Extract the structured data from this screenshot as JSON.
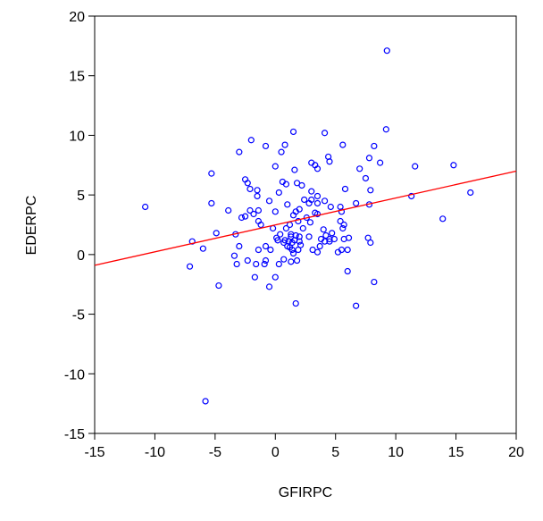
{
  "chart_data": {
    "type": "scatter",
    "xlabel": "GFIRPC",
    "ylabel": "EDERPC",
    "xlim": [
      -15,
      20
    ],
    "ylim": [
      -15,
      20
    ],
    "xticks": [
      -15,
      -10,
      -5,
      0,
      5,
      10,
      15,
      20
    ],
    "yticks": [
      -15,
      -10,
      -5,
      0,
      5,
      10,
      15,
      20
    ],
    "series": [
      {
        "type": "scatter",
        "color": "#0000ff",
        "x": [
          9.27,
          9.2,
          1.5,
          -2.0,
          -0.8,
          0.8,
          4.1,
          5.6,
          8.2,
          0.5,
          -3.0,
          4.4,
          4.5,
          3.3,
          3.0,
          0,
          1.6,
          3.5,
          7.0,
          7.8,
          8.7,
          11.6,
          14.8,
          -5.3,
          7.5,
          -2.5,
          0.6,
          1.8,
          2.2,
          0.9,
          -2.3,
          5.8,
          16.2,
          7.9,
          -2.1,
          -1.5,
          3.0,
          0.3,
          11.3,
          3.5,
          4.1,
          -1.5,
          2.4,
          3.0,
          -0.5,
          2.8,
          -5.3,
          3.5,
          1.0,
          6.7,
          7.8,
          -10.8,
          4.6,
          5.4,
          -3.9,
          -2.1,
          -1.4,
          1.7,
          2.0,
          5.5,
          0,
          3.3,
          -1.8,
          1.5,
          3.5,
          -2.5,
          2.6,
          -2.8,
          -1.4,
          1.9,
          5.4,
          13.9,
          1.2,
          2.9,
          -1.2,
          5.7,
          5.6,
          4.0,
          0.9,
          2.3,
          -0.2,
          -4.9,
          -3.3,
          4.7,
          1.3,
          1.7,
          0.4,
          2.8,
          4.2,
          1.3,
          2.0,
          0.1,
          4.5,
          3.8,
          4.9,
          5.7,
          6.1,
          7.7,
          1.6,
          0.8,
          1.1,
          0.2,
          4.5,
          1.4,
          0.7,
          4.1,
          2.0,
          -6.9,
          7.9,
          2.1,
          1.0,
          3.7,
          -3.0,
          -0.8,
          1.2,
          -6.0,
          3.1,
          6.0,
          -0.4,
          1.9,
          5.5,
          -1.4,
          3.5,
          1.4,
          5.2,
          1.5,
          -3.4,
          0.7,
          1.8,
          1.3,
          -0.8,
          -2.3,
          0.3,
          -0.9,
          -1.6,
          -3.2,
          -7.1,
          6.0,
          -1.7,
          0,
          8.2,
          -4.7,
          -0.5,
          1.7,
          6.7,
          -5.8
        ],
        "y": [
          17.1,
          10.5,
          10.3,
          9.6,
          9.1,
          9.2,
          10.2,
          9.2,
          9.1,
          8.6,
          8.6,
          8.2,
          7.8,
          7.5,
          7.7,
          7.4,
          7.1,
          7.2,
          7.2,
          8.1,
          7.7,
          7.4,
          7.5,
          6.8,
          6.4,
          6.3,
          6.1,
          6.0,
          5.8,
          5.9,
          6.0,
          5.5,
          5.2,
          5.4,
          5.5,
          5.4,
          5.3,
          5.2,
          4.9,
          4.9,
          4.5,
          4.9,
          4.6,
          4.6,
          4.5,
          4.3,
          4.3,
          4.3,
          4.2,
          4.3,
          4.2,
          4.0,
          4.0,
          4.0,
          3.7,
          3.7,
          3.7,
          3.6,
          3.8,
          3.6,
          3.6,
          3.5,
          3.4,
          3.3,
          3.4,
          3.2,
          3.1,
          3.1,
          2.8,
          2.8,
          2.8,
          3.0,
          2.5,
          2.7,
          2.5,
          2.5,
          2.2,
          2.1,
          2.2,
          2.2,
          2.2,
          1.8,
          1.7,
          1.8,
          1.7,
          1.6,
          1.7,
          1.5,
          1.6,
          1.5,
          1.5,
          1.4,
          1.3,
          1.3,
          1.3,
          1.3,
          1.4,
          1.4,
          1.2,
          1.2,
          1.1,
          1.2,
          1.1,
          1.0,
          1.0,
          1.1,
          1.1,
          1.1,
          1.0,
          0.8,
          0.7,
          0.7,
          0.7,
          0.7,
          0.6,
          0.5,
          0.4,
          0.4,
          0.4,
          0.4,
          0.4,
          0.4,
          0.2,
          0.4,
          0.2,
          0.1,
          -0.1,
          -0.4,
          -0.5,
          -0.6,
          -0.5,
          -0.5,
          -0.8,
          -0.8,
          -0.8,
          -0.8,
          -1.0,
          -1.4,
          -1.9,
          -1.9,
          -2.3,
          -2.6,
          -2.7,
          -4.1,
          -4.3,
          -12.3
        ]
      },
      {
        "type": "line",
        "color": "#ff0000",
        "x": [
          -15,
          20
        ],
        "y": [
          -0.9,
          7.0
        ]
      }
    ]
  }
}
